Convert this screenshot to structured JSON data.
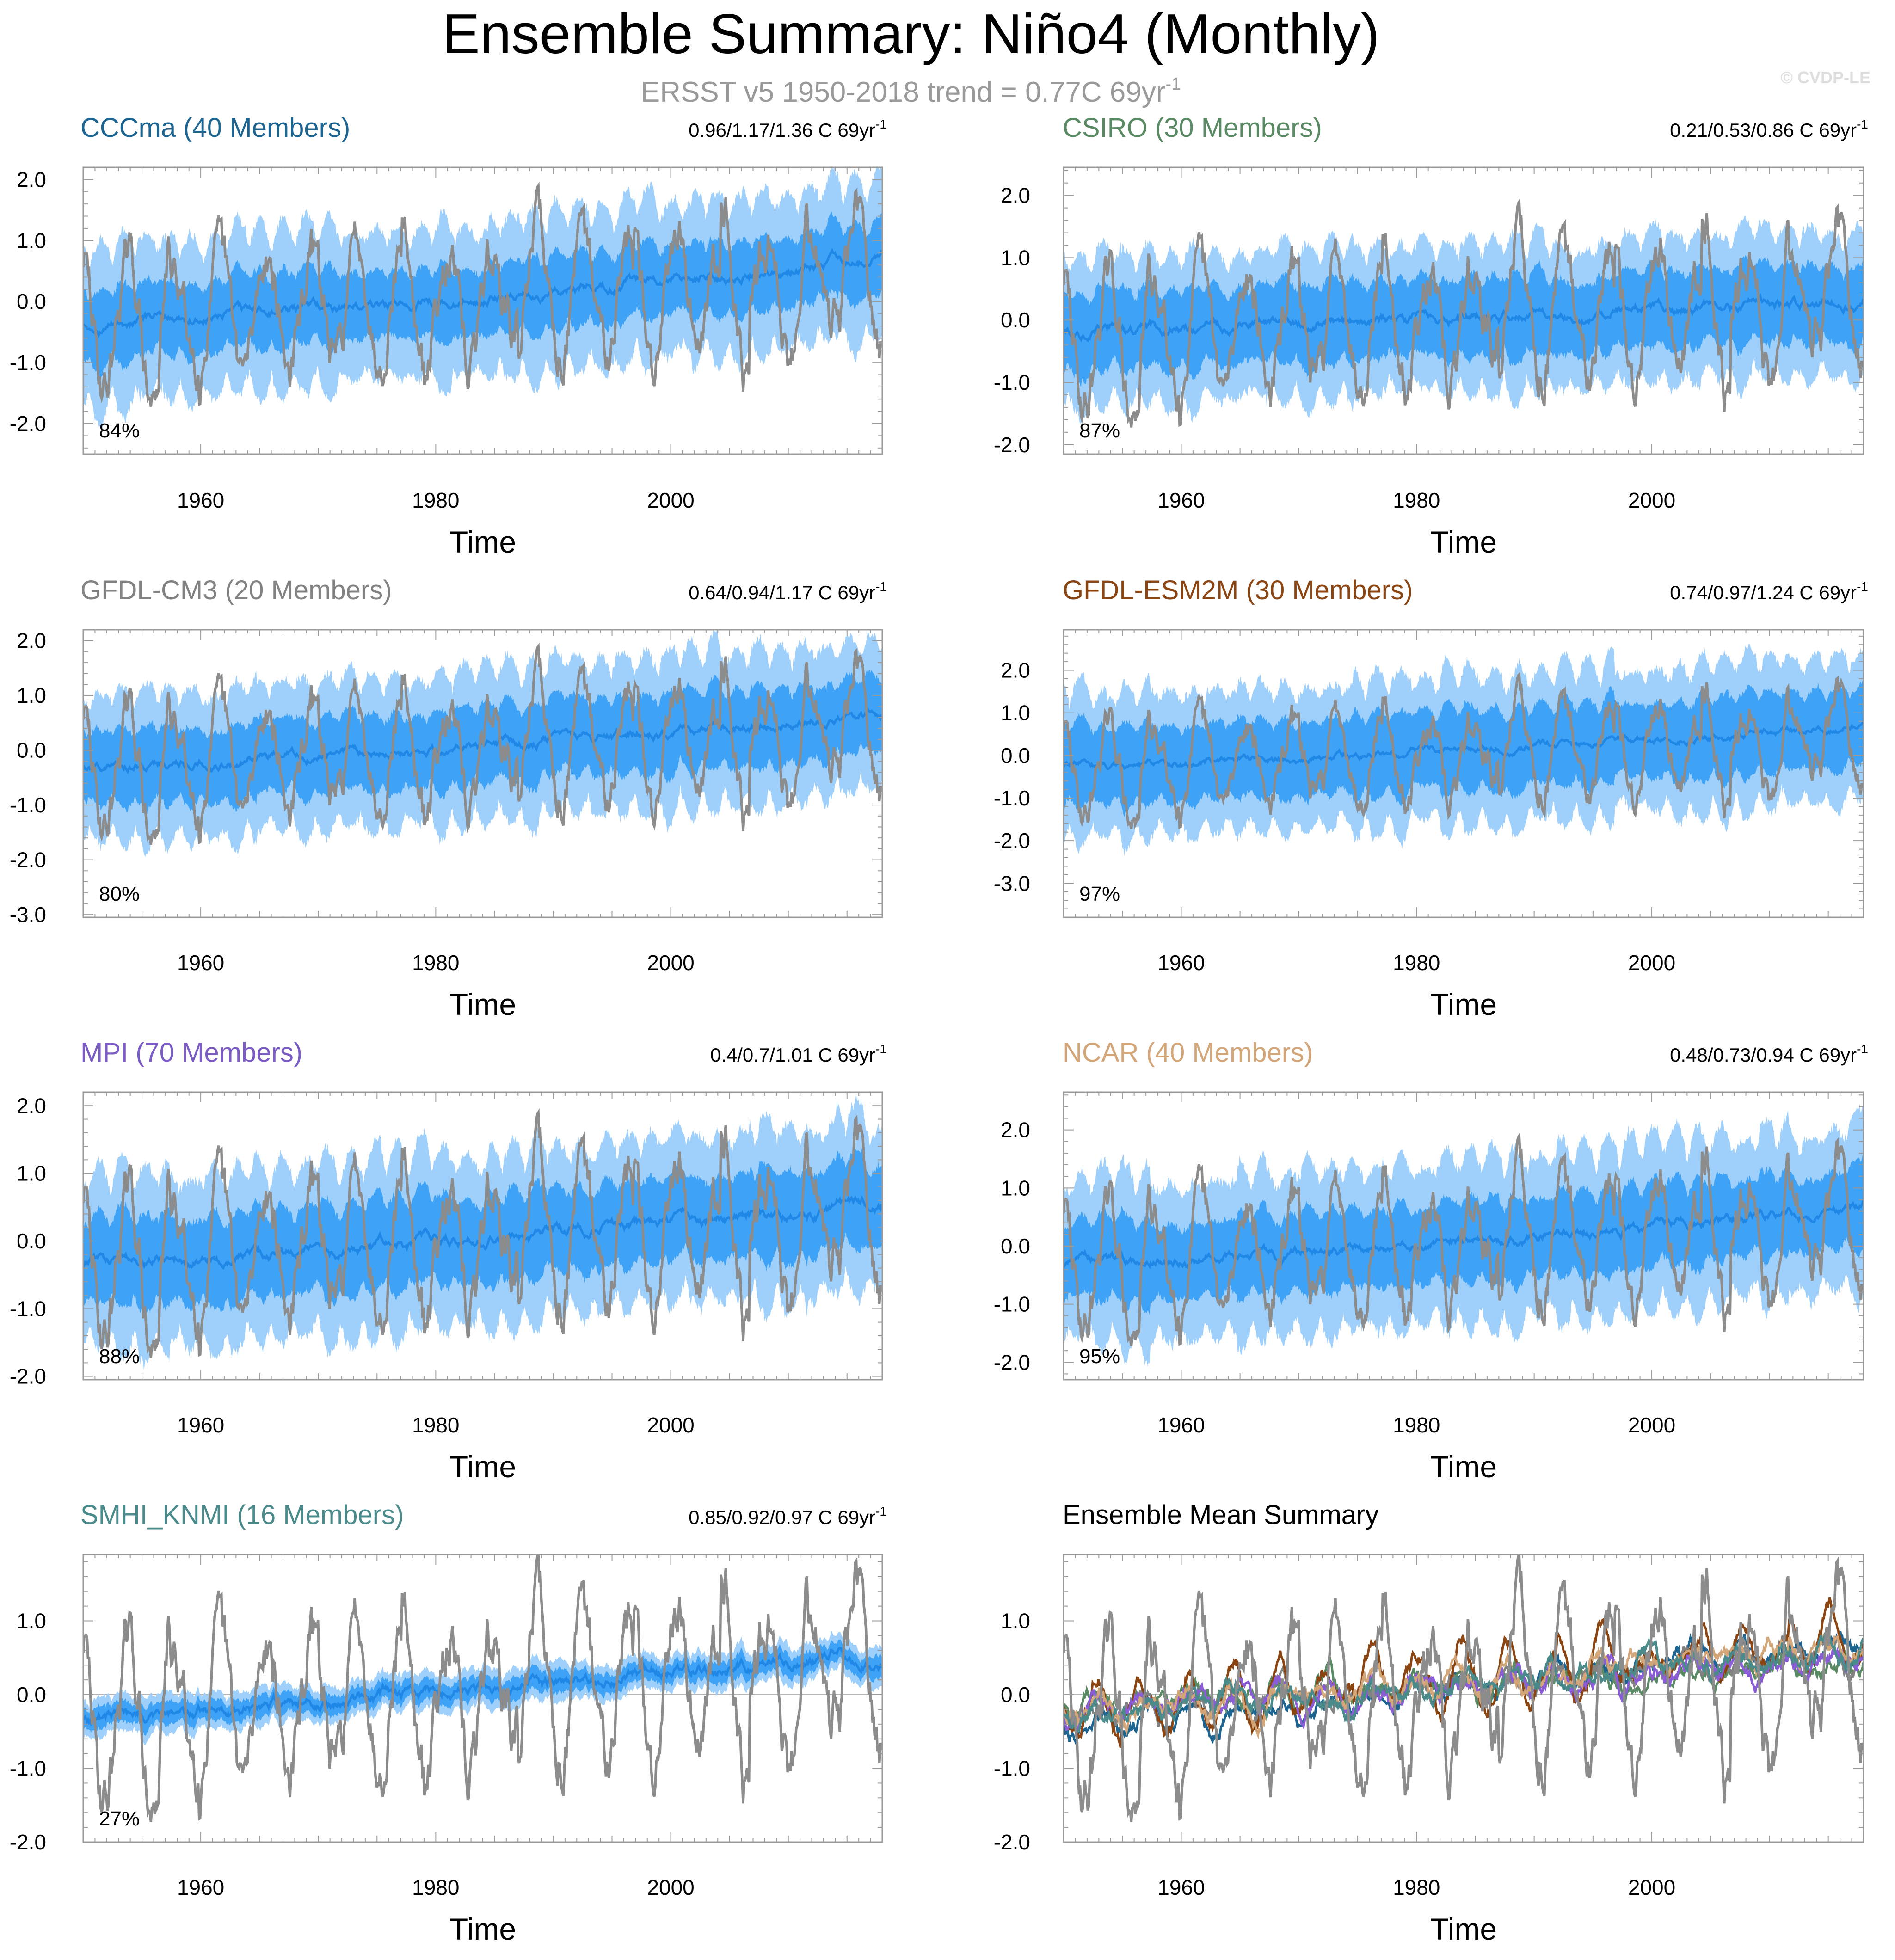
{
  "figure": {
    "title": "Ensemble Summary: Niño4 (Monthly)",
    "subtitle": "ERSST v5 1950-2018 trend = 0.77C 69yr",
    "subtitle_superscript": "-1",
    "watermark": "© CVDP-LE",
    "colors": {
      "observed": "#8c8c8c",
      "spread_outer": "#9fd0fb",
      "spread_inner": "#3ea2f6",
      "ensemble_mean": "#1f87e6",
      "zero_line": "#b4b4b4",
      "frame": "#9a9a9a",
      "text": "#000000"
    }
  },
  "chart_data": [
    {
      "type": "line",
      "panel": "CCCma",
      "title": "CCCma (40 Members)",
      "title_color": "#1e6491",
      "trend_text": "0.96/1.17/1.36 C 69yr",
      "trend_superscript": "-1",
      "percent_label": "84%",
      "xlabel": "Time",
      "xlim": [
        1950,
        2018
      ],
      "xticks": [
        "1960",
        "1980",
        "2000"
      ],
      "ylim": [
        -2.5,
        2.2
      ],
      "yticks": [
        "2.0",
        "1.0",
        "0.0",
        "-1.0",
        "-2.0"
      ],
      "mean_trend": [
        -0.35,
        0.72
      ],
      "spread_inner": 0.5,
      "spread_outer": 1.1
    },
    {
      "type": "line",
      "panel": "CSIRO",
      "title": "CSIRO (30 Members)",
      "title_color": "#5a8a64",
      "trend_text": "0.21/0.53/0.86 C 69yr",
      "trend_superscript": "-1",
      "percent_label": "87%",
      "xlabel": "Time",
      "xlim": [
        1950,
        2018
      ],
      "xticks": [
        "1960",
        "1980",
        "2000"
      ],
      "ylim": [
        -2.15,
        2.45
      ],
      "yticks": [
        "2.0",
        "1.0",
        "0.0",
        "-1.0",
        "-2.0"
      ],
      "mean_trend": [
        -0.15,
        0.3
      ],
      "spread_inner": 0.55,
      "spread_outer": 1.05
    },
    {
      "type": "line",
      "panel": "GFDL-CM3",
      "title": "GFDL-CM3 (20 Members)",
      "title_color": "#828282",
      "trend_text": "0.64/0.94/1.17 C 69yr",
      "trend_superscript": "-1",
      "percent_label": "80%",
      "xlabel": "Time",
      "xlim": [
        1950,
        2018
      ],
      "xticks": [
        "1960",
        "1980",
        "2000"
      ],
      "ylim": [
        -3.05,
        2.2
      ],
      "yticks": [
        "2.0",
        "1.0",
        "0.0",
        "-1.0",
        "-2.0",
        "-3.0"
      ],
      "mean_trend": [
        -0.3,
        0.65
      ],
      "spread_inner": 0.6,
      "spread_outer": 1.2
    },
    {
      "type": "line",
      "panel": "GFDL-ESM2M",
      "title": "GFDL-ESM2M (30 Members)",
      "title_color": "#8b4513",
      "trend_text": "0.74/0.97/1.24 C 69yr",
      "trend_superscript": "-1",
      "percent_label": "97%",
      "xlabel": "Time",
      "xlim": [
        1950,
        2018
      ],
      "xticks": [
        "1960",
        "1980",
        "2000"
      ],
      "ylim": [
        -3.8,
        2.95
      ],
      "yticks": [
        "2.0",
        "1.0",
        "0.0",
        "-1.0",
        "-2.0",
        "-3.0"
      ],
      "mean_trend": [
        -0.25,
        0.7
      ],
      "spread_inner": 0.8,
      "spread_outer": 1.5
    },
    {
      "type": "line",
      "panel": "MPI",
      "title": "MPI (70 Members)",
      "title_color": "#7a5cc4",
      "trend_text": "0.4/0.7/1.01 C 69yr",
      "trend_superscript": "-1",
      "percent_label": "88%",
      "xlabel": "Time",
      "xlim": [
        1950,
        2018
      ],
      "xticks": [
        "1960",
        "1980",
        "2000"
      ],
      "ylim": [
        -2.05,
        2.2
      ],
      "yticks": [
        "2.0",
        "1.0",
        "0.0",
        "-1.0",
        "-2.0"
      ],
      "mean_trend": [
        -0.3,
        0.55
      ],
      "spread_inner": 0.55,
      "spread_outer": 1.1
    },
    {
      "type": "line",
      "panel": "NCAR",
      "title": "NCAR (40 Members)",
      "title_color": "#d2a679",
      "trend_text": "0.48/0.73/0.94 C 69yr",
      "trend_superscript": "-1",
      "percent_label": "95%",
      "xlabel": "Time",
      "xlim": [
        1950,
        2018
      ],
      "xticks": [
        "1960",
        "1980",
        "2000"
      ],
      "ylim": [
        -2.3,
        2.65
      ],
      "yticks": [
        "2.0",
        "1.0",
        "0.0",
        "-1.0",
        "-2.0"
      ],
      "mean_trend": [
        -0.3,
        0.65
      ],
      "spread_inner": 0.6,
      "spread_outer": 1.25
    },
    {
      "type": "line",
      "panel": "SMHI_KNMI",
      "title": "SMHI_KNMI (16 Members)",
      "title_color": "#4a8a8a",
      "trend_text": "0.85/0.92/0.97 C 69yr",
      "trend_superscript": "-1",
      "percent_label": "27%",
      "xlabel": "Time",
      "xlim": [
        1950,
        2018
      ],
      "xticks": [
        "1960",
        "1980",
        "2000"
      ],
      "ylim": [
        -2.0,
        1.9
      ],
      "yticks": [
        "1.0",
        "0.0",
        "-1.0",
        "-2.0"
      ],
      "mean_trend": [
        -0.3,
        0.6
      ],
      "spread_inner": 0.12,
      "spread_outer": 0.22
    },
    {
      "type": "line",
      "panel": "Ensemble Mean Summary",
      "title": "Ensemble Mean Summary",
      "title_color": "#000000",
      "xlabel": "Time",
      "xlim": [
        1950,
        2018
      ],
      "xticks": [
        "1960",
        "1980",
        "2000"
      ],
      "ylim": [
        -2.0,
        1.9
      ],
      "yticks": [
        "1.0",
        "0.0",
        "-1.0",
        "-2.0"
      ],
      "series": [
        {
          "name": "CCCma",
          "color": "#1e6491",
          "trend": [
            -0.5,
            0.7
          ]
        },
        {
          "name": "CSIRO",
          "color": "#5a8a64",
          "trend": [
            -0.15,
            0.4
          ]
        },
        {
          "name": "GFDL-CM3",
          "color": "#828282",
          "trend": [
            -0.3,
            0.6
          ]
        },
        {
          "name": "GFDL-ESM2M",
          "color": "#8b4513",
          "trend": [
            -0.2,
            0.75
          ]
        },
        {
          "name": "MPI",
          "color": "#8a5cd6",
          "trend": [
            -0.25,
            0.5
          ]
        },
        {
          "name": "NCAR",
          "color": "#d2a679",
          "trend": [
            -0.3,
            0.7
          ]
        },
        {
          "name": "SMHI_KNMI",
          "color": "#4a8a8a",
          "trend": [
            -0.3,
            0.6
          ]
        }
      ]
    }
  ]
}
